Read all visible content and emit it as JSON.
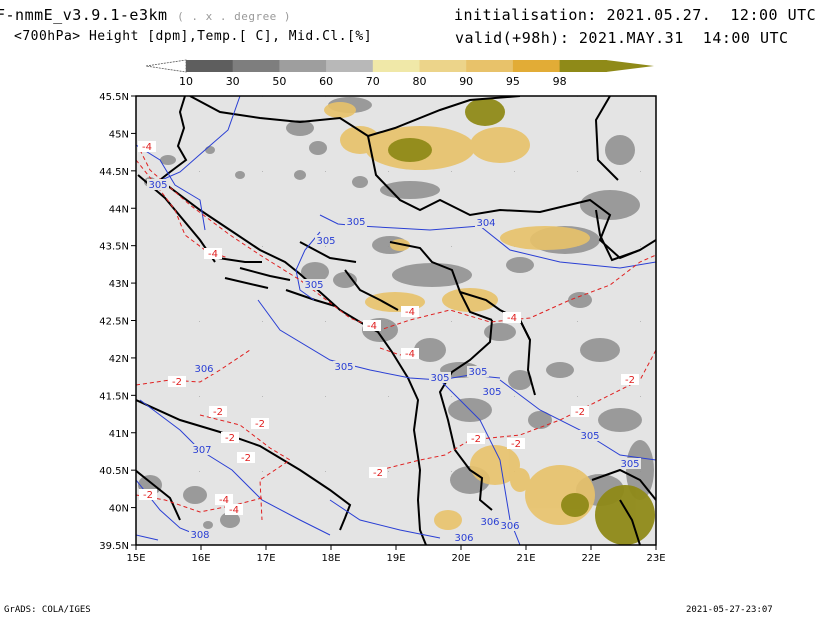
{
  "header": {
    "model": "F-nmmE_v3.9.1-e3km",
    "grid_note": "( . x . degree )",
    "fields": "<700hPa> Height [dpm],Temp.[ C], Mid.Cl.[%]",
    "init": "initialisation: 2021.05.27.  12:00 UTC",
    "valid": "valid(+98h): 2021.MAY.31  14:00 UTC"
  },
  "colorbar": {
    "labels": [
      "10",
      "30",
      "50",
      "60",
      "70",
      "80",
      "90",
      "95",
      "98"
    ],
    "colors": [
      "#5e5e5e",
      "#7e7e7e",
      "#9e9e9e",
      "#b8b8b8",
      "#f0e8a8",
      "#ecd48a",
      "#e8c26a",
      "#e2ac36",
      "#8f8a18"
    ]
  },
  "axes": {
    "lat_labels": [
      "45.5N",
      "45N",
      "44.5N",
      "44N",
      "43.5N",
      "43N",
      "42.5N",
      "42N",
      "41.5N",
      "41N",
      "40.5N",
      "40N",
      "39.5N"
    ],
    "lon_labels": [
      "15E",
      "16E",
      "17E",
      "18E",
      "19E",
      "20E",
      "21E",
      "22E",
      "23E"
    ]
  },
  "height_contours": [
    "305",
    "305",
    "305",
    "304",
    "305",
    "306",
    "305",
    "305",
    "305",
    "305",
    "307",
    "308",
    "306",
    "306",
    "306",
    "305",
    "305"
  ],
  "temp_contours": [
    "-4",
    "-4",
    "-4",
    "-4",
    "-4",
    "-4",
    "-2",
    "-2",
    "-2",
    "-2",
    "-2",
    "-2",
    "-2",
    "-2",
    "-2",
    "-2",
    "-2",
    "-4",
    "-4"
  ],
  "footer": {
    "left": "GrADS: COLA/IGES",
    "right": "2021-05-27-23:07"
  }
}
